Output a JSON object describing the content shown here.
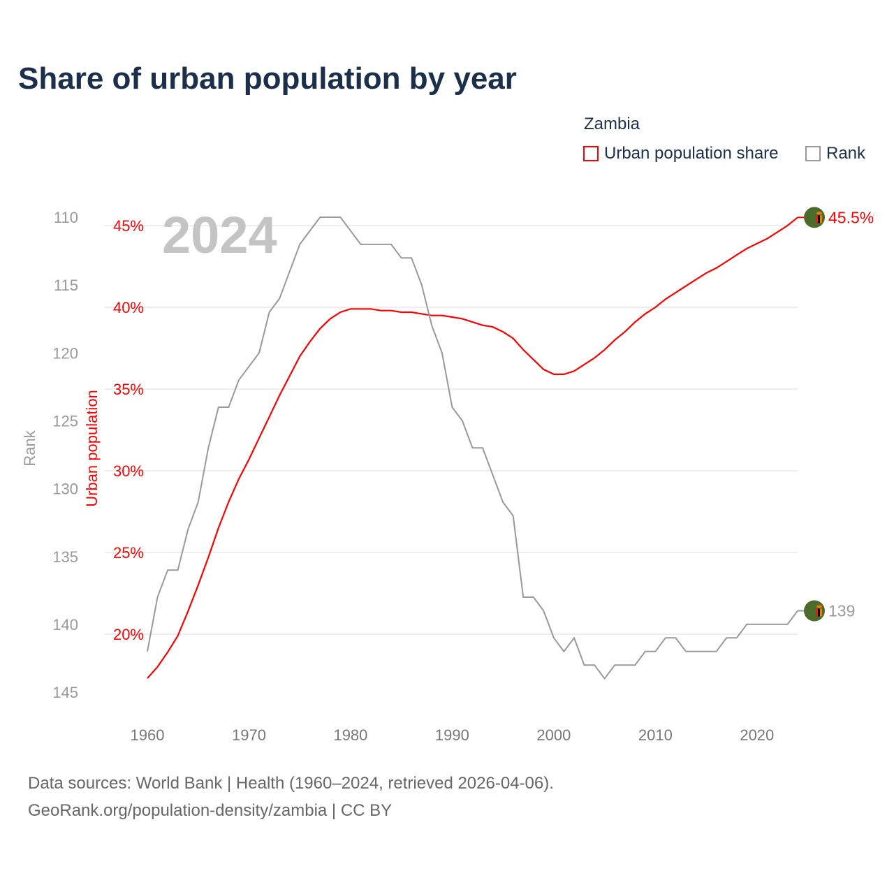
{
  "chart_data": {
    "type": "line",
    "title": "Share of urban population by year",
    "watermark_year": "2024",
    "legend": {
      "title": "Zambia",
      "placement": "top-right",
      "entries": [
        {
          "label": "Urban population share",
          "color": "#ff0000"
        },
        {
          "label": "Rank",
          "color": "#999999"
        }
      ]
    },
    "xlabel": "",
    "ylabel_left": "Rank",
    "ylabel_right": "Urban population",
    "x_ticks": [
      "1960",
      "1970",
      "1980",
      "1990",
      "2000",
      "2010",
      "2020"
    ],
    "x_tick_values": [
      1960,
      1970,
      1980,
      1990,
      2000,
      2010,
      2020
    ],
    "xlim": [
      1960,
      2024
    ],
    "rank_ticks": [
      "110",
      "115",
      "120",
      "125",
      "130",
      "135",
      "140",
      "145"
    ],
    "rank_tick_values": [
      110,
      115,
      120,
      125,
      130,
      135,
      140,
      145
    ],
    "rank_lim": [
      110,
      145
    ],
    "urban_ticks": [
      "20%",
      "25%",
      "30%",
      "35%",
      "40%",
      "45%"
    ],
    "urban_tick_values": [
      20,
      25,
      30,
      35,
      40,
      45
    ],
    "grid": true,
    "x": [
      1960,
      1961,
      1962,
      1963,
      1964,
      1965,
      1966,
      1967,
      1968,
      1969,
      1970,
      1971,
      1972,
      1973,
      1974,
      1975,
      1976,
      1977,
      1978,
      1979,
      1980,
      1981,
      1982,
      1983,
      1984,
      1985,
      1986,
      1987,
      1988,
      1989,
      1990,
      1991,
      1992,
      1993,
      1994,
      1995,
      1996,
      1997,
      1998,
      1999,
      2000,
      2001,
      2002,
      2003,
      2004,
      2005,
      2006,
      2007,
      2008,
      2009,
      2010,
      2011,
      2012,
      2013,
      2014,
      2015,
      2016,
      2017,
      2018,
      2019,
      2020,
      2021,
      2022,
      2023,
      2024
    ],
    "series": [
      {
        "name": "Urban population share",
        "unit": "%",
        "color": "#ff0000",
        "values": [
          17.3,
          18.0,
          18.9,
          19.9,
          21.4,
          23.0,
          24.7,
          26.5,
          28.1,
          29.5,
          30.7,
          32.0,
          33.3,
          34.6,
          35.8,
          37.0,
          37.9,
          38.7,
          39.3,
          39.7,
          39.9,
          39.9,
          39.9,
          39.8,
          39.8,
          39.7,
          39.7,
          39.6,
          39.5,
          39.5,
          39.4,
          39.3,
          39.1,
          38.9,
          38.8,
          38.5,
          38.1,
          37.4,
          36.8,
          36.2,
          35.9,
          35.9,
          36.1,
          36.5,
          36.9,
          37.4,
          38.0,
          38.5,
          39.1,
          39.6,
          40.0,
          40.5,
          40.9,
          41.3,
          41.7,
          42.1,
          42.4,
          42.8,
          43.2,
          43.6,
          43.9,
          44.2,
          44.6,
          45.0,
          45.5
        ],
        "end_label": "45.5%"
      },
      {
        "name": "Rank",
        "unit": "",
        "color": "#999999",
        "values": [
          142,
          138,
          136,
          136,
          133,
          131,
          127,
          124,
          124,
          122,
          121,
          120,
          117,
          116,
          114,
          112,
          111,
          110,
          110,
          110,
          111,
          112,
          112,
          112,
          112,
          113,
          113,
          115,
          118,
          120,
          124,
          125,
          127,
          127,
          129,
          131,
          132,
          138,
          138,
          139,
          141,
          142,
          141,
          143,
          143,
          144,
          143,
          143,
          143,
          142,
          142,
          141,
          141,
          142,
          142,
          142,
          142,
          141,
          141,
          140,
          140,
          140,
          140,
          140,
          139
        ],
        "end_label": "139"
      }
    ]
  },
  "footer": {
    "sources": "Data sources: World Bank | Health (1960–2024, retrieved 2026-04-06).",
    "attribution": "GeoRank.org/population-density/zambia | CC BY"
  },
  "colors": {
    "title": "#1b2f4b",
    "urban": "#ff0000",
    "rank": "#999999",
    "flag_green": "#4a6b2a"
  }
}
